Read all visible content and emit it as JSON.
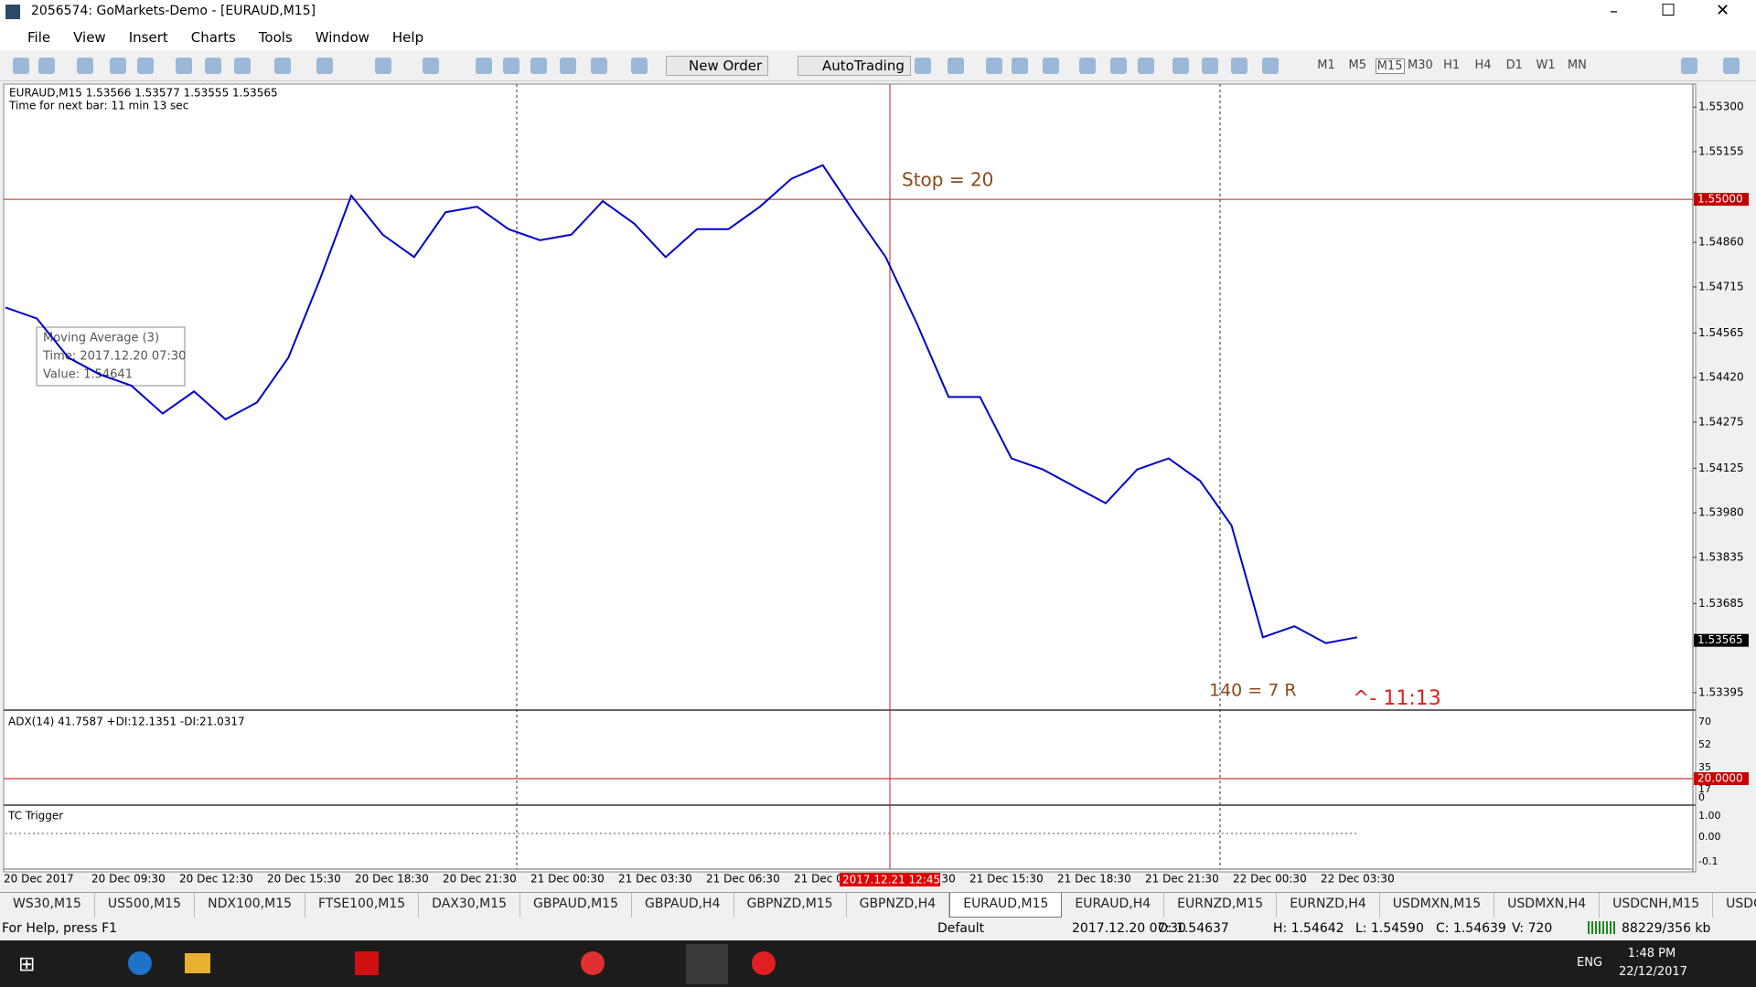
{
  "window": {
    "title": "2056574: GoMarkets-Demo - [EURAUD,M15]"
  },
  "menu": [
    "File",
    "View",
    "Insert",
    "Charts",
    "Tools",
    "Window",
    "Help"
  ],
  "toolbar": {
    "new_order": "New Order",
    "autotrading": "AutoTrading",
    "timeframes": [
      "M1",
      "M5",
      "M15",
      "M30",
      "H1",
      "H4",
      "D1",
      "W1",
      "MN"
    ],
    "active_timeframe": 2
  },
  "chart": {
    "header": "EURAUD,M15  1.53566 1.53577 1.53555 1.53565",
    "next_bar": "Time for next bar: 11 min 13 sec",
    "close": [
      1.54648,
      1.54612,
      1.54485,
      1.5443,
      1.54394,
      1.54303,
      1.54375,
      1.54284,
      1.54339,
      1.54485,
      1.54739,
      1.55012,
      1.54885,
      1.54812,
      1.54958,
      1.54976,
      1.54903,
      1.54867,
      1.54885,
      1.54994,
      1.54921,
      1.54812,
      1.54903,
      1.54903,
      1.54976,
      1.55067,
      1.55111,
      1.54958,
      1.54812,
      1.54594,
      1.54357,
      1.54357,
      1.54157,
      1.54121,
      1.54066,
      1.54011,
      1.54121,
      1.54157,
      1.54084,
      1.53939,
      1.53575,
      1.53611,
      1.53556,
      1.53575
    ],
    "color": "#0000cc",
    "ylim": [
      1.53344,
      1.55369
    ],
    "yticks": [
      {
        "value": 1.553,
        "label": "1.55300"
      },
      {
        "value": 1.55155,
        "label": "1.55155"
      },
      {
        "value": 1.5486,
        "label": "1.54860"
      },
      {
        "value": 1.54715,
        "label": "1.54715"
      },
      {
        "value": 1.54565,
        "label": "1.54565"
      },
      {
        "value": 1.5442,
        "label": "1.54420"
      },
      {
        "value": 1.54275,
        "label": "1.54275"
      },
      {
        "value": 1.54125,
        "label": "1.54125"
      },
      {
        "value": 1.5398,
        "label": "1.53980"
      },
      {
        "value": 1.53835,
        "label": "1.53835"
      },
      {
        "value": 1.53685,
        "label": "1.53685"
      },
      {
        "value": 1.53395,
        "label": "1.53395"
      }
    ],
    "stop_level": {
      "value": 1.55,
      "label": "1.55000"
    },
    "current_price": {
      "value": 1.53565,
      "label": "1.53565"
    },
    "annotations": {
      "stop": "Stop = 20",
      "target": "140 = 7 R",
      "timer": "^- 11:13"
    },
    "tooltip": [
      "Moving Average (3)",
      "Time: 2017.12.20 07:30",
      "Value: 1.54641"
    ]
  },
  "adx": {
    "header": "ADX(14) 41.7587 +DI:12.1351 -DI:21.0317",
    "labels": [
      "70",
      "52",
      "35",
      "17",
      "0"
    ],
    "level": "20.0000"
  },
  "tc_trigger": {
    "title": "TC Trigger",
    "labels": [
      "1.00",
      "0.00",
      "-0.1"
    ]
  },
  "time_axis": [
    "20 Dec 2017",
    "20 Dec 09:30",
    "20 Dec 12:30",
    "20 Dec 15:30",
    "20 Dec 18:30",
    "20 Dec 21:30",
    "21 Dec 00:30",
    "21 Dec 03:30",
    "21 Dec 06:30",
    "21 Dec 09:30",
    "21 Dec 12:30",
    "21 Dec 15:30",
    "21 Dec 18:30",
    "21 Dec 21:30",
    "22 Dec 00:30",
    "22 Dec 03:30"
  ],
  "cursor_time": "2017.12.21 12:45",
  "tabs": [
    "WS30,M15",
    "US500,M15",
    "NDX100,M15",
    "FTSE100,M15",
    "DAX30,M15",
    "GBPAUD,M15",
    "GBPAUD,H4",
    "GBPNZD,M15",
    "GBPNZD,H4",
    "EURAUD,M15",
    "EURAUD,H4",
    "EURNZD,M15",
    "EURNZD,H4",
    "USDMXN,M15",
    "USDMXN,H4",
    "USDCNH,M15",
    "USDCNH,H"
  ],
  "active_tab": 9,
  "status": {
    "help": "For Help, press F1",
    "profile": "Default",
    "time": "2017.12.20 07:30",
    "open": "O: 1.54637",
    "high": "H: 1.54642",
    "low": "L: 1.54590",
    "close": "C: 1.54639",
    "volume": "V: 720",
    "traffic": "88229/356 kb"
  },
  "taskbar": {
    "lang": "ENG",
    "time": "1:48 PM",
    "date": "22/12/2017"
  }
}
